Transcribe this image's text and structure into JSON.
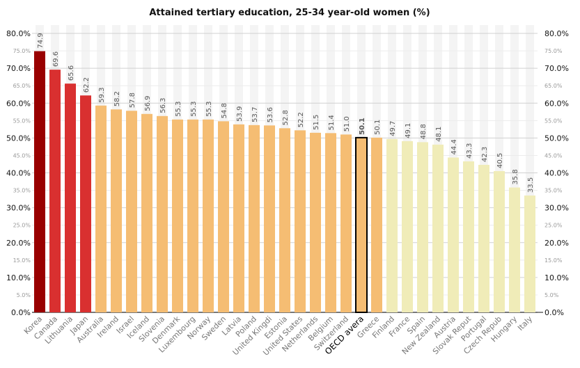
{
  "chart_data": {
    "type": "bar",
    "title": "Attained tertiary education, 25-34 year-old women (%)",
    "xlabel": "",
    "ylabel": "",
    "ylim": [
      0,
      80
    ],
    "major_ticks": [
      "0.0%",
      "10.0%",
      "20.0%",
      "30.0%",
      "40.0%",
      "50.0%",
      "60.0%",
      "70.0%",
      "80.0%"
    ],
    "minor_ticks": [
      "5.0%",
      "15.0%",
      "25.0%",
      "35.0%",
      "45.0%",
      "55.0%",
      "65.0%",
      "75.0%"
    ],
    "grid": true,
    "categories": [
      "Korea",
      "Canada",
      "Lithuania",
      "Japan",
      "Australia",
      "Ireland",
      "Israel",
      "Iceland",
      "Slovenia",
      "Denmark",
      "Luxembourg",
      "Norway",
      "Sweden",
      "Latvia",
      "Poland",
      "United Kingdi",
      "Estonia",
      "United States",
      "Netherlands",
      "Belgium",
      "Switzerland",
      "OECD avera",
      "Greece",
      "Finland",
      "France",
      "Spain",
      "New Zealand",
      "Austria",
      "Slovak Reput",
      "Portugal",
      "Czech Repub",
      "Hungary",
      "Italy"
    ],
    "values": [
      74.9,
      69.6,
      65.6,
      62.2,
      59.3,
      58.2,
      57.8,
      56.9,
      56.3,
      55.3,
      55.3,
      55.3,
      54.8,
      53.9,
      53.7,
      53.6,
      52.8,
      52.2,
      51.5,
      51.4,
      51.0,
      50.1,
      50.1,
      49.7,
      49.1,
      48.8,
      48.1,
      44.4,
      43.3,
      42.3,
      40.5,
      35.8,
      33.5
    ],
    "value_labels": [
      "74.9",
      "69.6",
      "65.6",
      "62.2",
      "59.3",
      "58.2",
      "57.8",
      "56.9",
      "56.3",
      "55.3",
      "55.3",
      "55.3",
      "54.8",
      "53.9",
      "53.7",
      "53.6",
      "52.8",
      "52.2",
      "51.5",
      "51.4",
      "51.0",
      "50.1",
      "50.1",
      "49.7",
      "49.1",
      "48.8",
      "48.1",
      "44.4",
      "43.3",
      "42.3",
      "40.5",
      "35.8",
      "33.5"
    ],
    "groups": [
      "top",
      "high",
      "high",
      "high",
      "mid",
      "mid",
      "mid",
      "mid",
      "mid",
      "mid",
      "mid",
      "mid",
      "mid",
      "mid",
      "mid",
      "mid",
      "mid",
      "mid",
      "mid",
      "mid",
      "mid",
      "avg",
      "mid",
      "low",
      "low",
      "low",
      "low",
      "low",
      "low",
      "low",
      "low",
      "low",
      "low"
    ],
    "colors": {
      "top": "#990000",
      "high": "#d93030",
      "mid": "#f5bd73",
      "avg": "#f5bd73",
      "low": "#f0ecb8"
    },
    "highlight": "OECD avera"
  }
}
